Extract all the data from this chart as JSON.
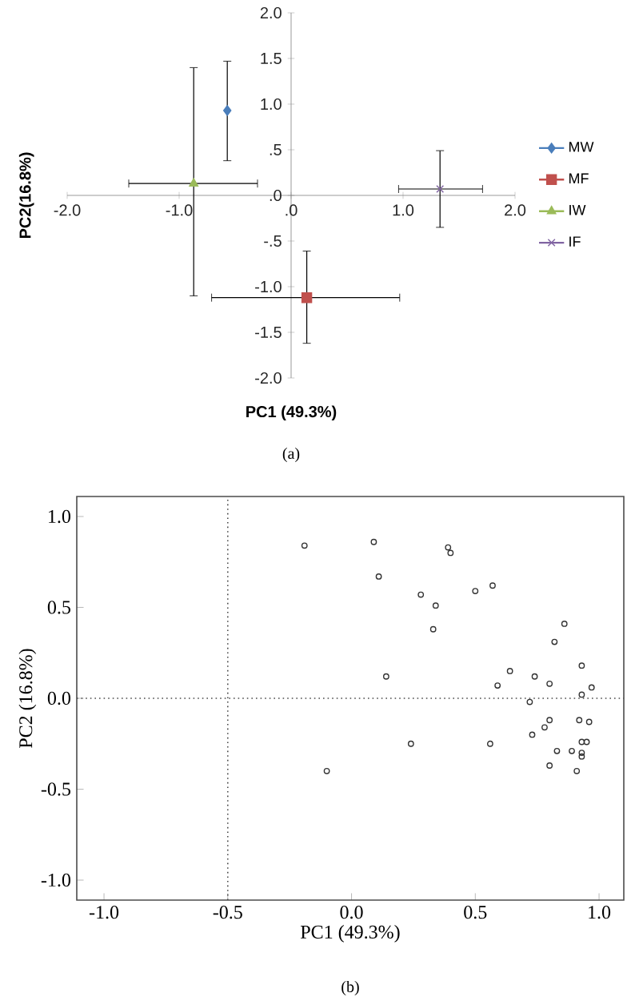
{
  "chart_data": [
    {
      "type": "scatter",
      "xlabel": "PC1 (49.3%)",
      "ylabel": "PC2(16.8%)",
      "xlim": [
        -2,
        2
      ],
      "ylim": [
        -2,
        2
      ],
      "xticks": [
        {
          "value": -2,
          "label": "-2.0"
        },
        {
          "value": -1,
          "label": "-1.0"
        },
        {
          "value": 0,
          "label": ".0"
        },
        {
          "value": 1,
          "label": "1.0"
        },
        {
          "value": 2,
          "label": "2.0"
        }
      ],
      "yticks": [
        {
          "value": -2,
          "label": "-2.0"
        },
        {
          "value": -1.5,
          "label": "-1.5"
        },
        {
          "value": -1,
          "label": "-1.0"
        },
        {
          "value": -0.5,
          "label": "-.5"
        },
        {
          "value": 0,
          "label": ".0"
        },
        {
          "value": 0.5,
          "label": ".5"
        },
        {
          "value": 1,
          "label": "1.0"
        },
        {
          "value": 1.5,
          "label": "1.5"
        },
        {
          "value": 2,
          "label": "2.0"
        }
      ],
      "legend": "right",
      "grid": false,
      "annotations": [
        "(a)"
      ],
      "series": [
        {
          "name": "MW",
          "color": "#4a7ebb",
          "marker": "diamond",
          "x": [
            -0.57
          ],
          "values": [
            0.93
          ],
          "errors": [
            [
              0.38,
              1.47
            ]
          ]
        },
        {
          "name": "MF",
          "color": "#c0504d",
          "marker": "square",
          "x": [
            0.14
          ],
          "values": [
            -1.12
          ],
          "errors": [
            [
              -1.62,
              -0.61
            ]
          ],
          "xerrors": [
            [
              -0.71,
              0.97
            ]
          ]
        },
        {
          "name": "IW",
          "color": "#9bbb59",
          "marker": "triangle",
          "x": [
            -0.87
          ],
          "values": [
            0.13
          ],
          "errors": [
            [
              -1.1,
              1.4
            ]
          ],
          "xerrors": [
            [
              -1.45,
              -0.3
            ]
          ]
        },
        {
          "name": "IF",
          "color": "#8064a2",
          "marker": "cross",
          "x": [
            1.33
          ],
          "values": [
            0.07
          ],
          "errors": [
            [
              -0.35,
              0.49
            ]
          ],
          "xerrors": [
            [
              0.96,
              1.71
            ]
          ]
        }
      ]
    },
    {
      "type": "scatter",
      "xlabel": "PC1 (49.3%)",
      "ylabel": "PC2 (16.8%)",
      "xlim": [
        -1.11,
        1.1
      ],
      "ylim": [
        -1.11,
        1.11
      ],
      "xticks": [
        {
          "value": -1,
          "label": "-1.0"
        },
        {
          "value": -0.5,
          "label": "-0.5"
        },
        {
          "value": 0,
          "label": "0.0"
        },
        {
          "value": 0.5,
          "label": "0.5"
        },
        {
          "value": 1,
          "label": "1.0"
        }
      ],
      "yticks": [
        {
          "value": -1,
          "label": "-1.0"
        },
        {
          "value": -0.5,
          "label": "-0.5"
        },
        {
          "value": 0,
          "label": "0.0"
        },
        {
          "value": 0.5,
          "label": "0.5"
        },
        {
          "value": 1,
          "label": "1.0"
        }
      ],
      "marker": "circle",
      "grid": false,
      "annotations": [
        "(b)"
      ],
      "ref_lines": [
        {
          "axis": "x",
          "value": -0.5,
          "line_style": "dotted"
        },
        {
          "axis": "y",
          "value": 0,
          "line_style": "dotted"
        }
      ],
      "series": [
        {
          "color": "#333333",
          "x": [
            -0.19,
            0.09,
            0.11,
            0.39,
            0.4,
            0.28,
            0.34,
            0.33,
            0.14,
            0.5,
            0.57,
            0.86,
            0.82,
            0.64,
            0.59,
            0.74,
            0.8,
            0.93,
            0.97,
            0.93,
            0.72,
            0.8,
            0.78,
            0.73,
            0.92,
            0.96,
            0.93,
            0.95,
            0.89,
            0.93,
            0.93,
            0.83,
            0.8,
            0.91,
            0.24,
            0.56,
            -0.1
          ],
          "values": [
            0.84,
            0.86,
            0.67,
            0.83,
            0.8,
            0.57,
            0.51,
            0.38,
            0.12,
            0.59,
            0.62,
            0.41,
            0.31,
            0.15,
            0.07,
            0.12,
            0.08,
            0.18,
            0.06,
            0.02,
            -0.02,
            -0.12,
            -0.16,
            -0.2,
            -0.12,
            -0.13,
            -0.24,
            -0.24,
            -0.29,
            -0.3,
            -0.32,
            -0.29,
            -0.37,
            -0.4,
            -0.25,
            -0.25,
            -0.4
          ]
        }
      ]
    }
  ]
}
